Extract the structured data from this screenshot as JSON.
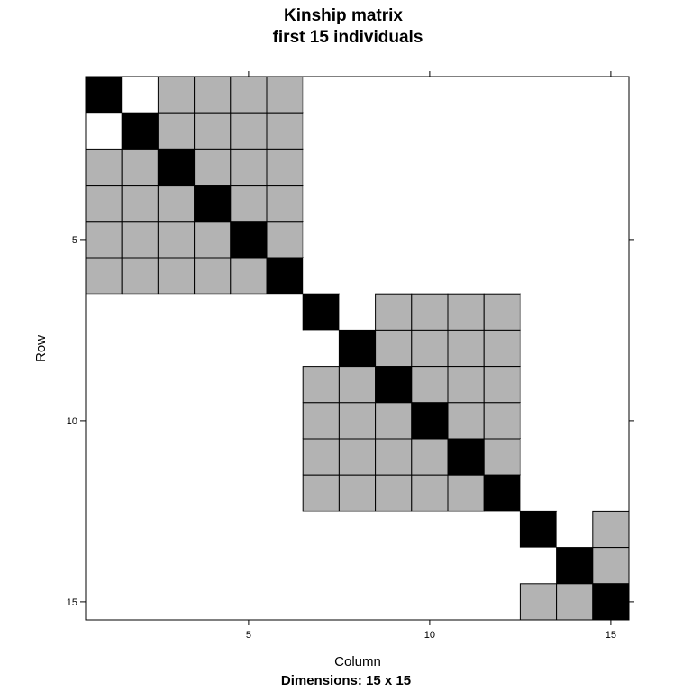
{
  "chart_data": {
    "type": "heatmap",
    "title": [
      "Kinship matrix",
      "first 15 individuals"
    ],
    "xlabel": "Column",
    "ylabel": "Row",
    "subtitle": "Dimensions: 15 x 15",
    "n": 15,
    "x_ticks": [
      "5",
      "10",
      "15"
    ],
    "y_ticks": [
      "5",
      "10",
      "15"
    ],
    "levels": {
      "diagonal": 1,
      "related": 0.5,
      "unrelated": 0
    },
    "level_colors": {
      "1": "#000000",
      "0.5": "#b3b3b3",
      "0": "#ffffff"
    },
    "matrix": [
      [
        1,
        0,
        0.5,
        0.5,
        0.5,
        0.5,
        0,
        0,
        0,
        0,
        0,
        0,
        0,
        0,
        0
      ],
      [
        0,
        1,
        0.5,
        0.5,
        0.5,
        0.5,
        0,
        0,
        0,
        0,
        0,
        0,
        0,
        0,
        0
      ],
      [
        0.5,
        0.5,
        1,
        0.5,
        0.5,
        0.5,
        0,
        0,
        0,
        0,
        0,
        0,
        0,
        0,
        0
      ],
      [
        0.5,
        0.5,
        0.5,
        1,
        0.5,
        0.5,
        0,
        0,
        0,
        0,
        0,
        0,
        0,
        0,
        0
      ],
      [
        0.5,
        0.5,
        0.5,
        0.5,
        1,
        0.5,
        0,
        0,
        0,
        0,
        0,
        0,
        0,
        0,
        0
      ],
      [
        0.5,
        0.5,
        0.5,
        0.5,
        0.5,
        1,
        0,
        0,
        0,
        0,
        0,
        0,
        0,
        0,
        0
      ],
      [
        0,
        0,
        0,
        0,
        0,
        0,
        1,
        0,
        0.5,
        0.5,
        0.5,
        0.5,
        0,
        0,
        0
      ],
      [
        0,
        0,
        0,
        0,
        0,
        0,
        0,
        1,
        0.5,
        0.5,
        0.5,
        0.5,
        0,
        0,
        0
      ],
      [
        0,
        0,
        0,
        0,
        0,
        0,
        0.5,
        0.5,
        1,
        0.5,
        0.5,
        0.5,
        0,
        0,
        0
      ],
      [
        0,
        0,
        0,
        0,
        0,
        0,
        0.5,
        0.5,
        0.5,
        1,
        0.5,
        0.5,
        0,
        0,
        0
      ],
      [
        0,
        0,
        0,
        0,
        0,
        0,
        0.5,
        0.5,
        0.5,
        0.5,
        1,
        0.5,
        0,
        0,
        0
      ],
      [
        0,
        0,
        0,
        0,
        0,
        0,
        0.5,
        0.5,
        0.5,
        0.5,
        0.5,
        1,
        0,
        0,
        0
      ],
      [
        0,
        0,
        0,
        0,
        0,
        0,
        0,
        0,
        0,
        0,
        0,
        0,
        1,
        0,
        0.5
      ],
      [
        0,
        0,
        0,
        0,
        0,
        0,
        0,
        0,
        0,
        0,
        0,
        0,
        0,
        1,
        0.5
      ],
      [
        0,
        0,
        0,
        0,
        0,
        0,
        0,
        0,
        0,
        0,
        0,
        0,
        0.5,
        0.5,
        1
      ]
    ]
  }
}
